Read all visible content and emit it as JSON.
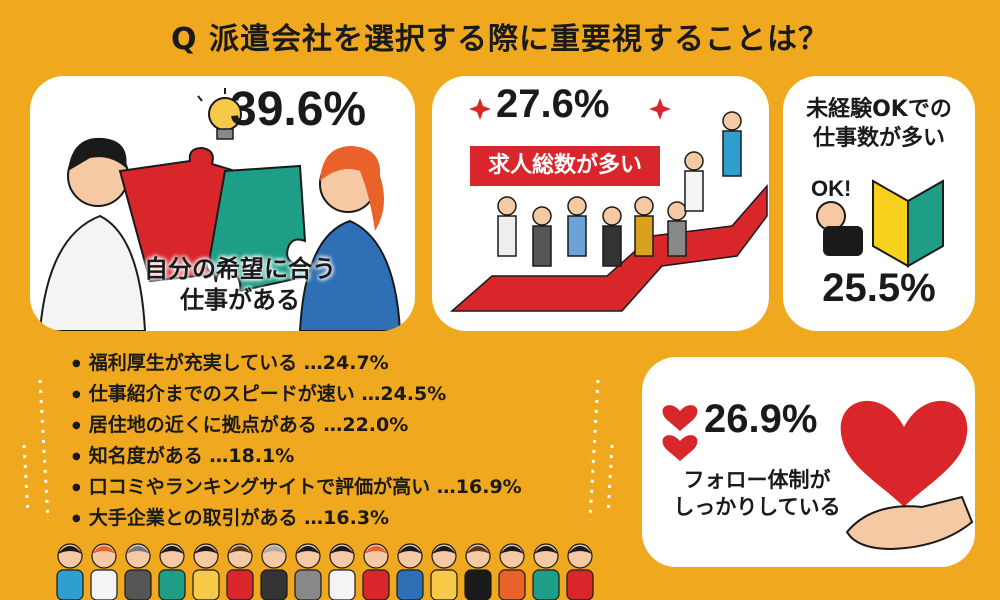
{
  "title": "Q 派遣会社を選択する際に重要視することは？",
  "chart_data": {
    "type": "infographic",
    "title": "Q 派遣会社を選択する際に重要視することは？",
    "items": [
      {
        "label": "自分の希望に合う仕事がある",
        "label_lines": [
          "自分の希望に合う",
          "仕事がある"
        ],
        "value": 39.6,
        "display": "39.6%"
      },
      {
        "label": "求人総数が多い",
        "value": 27.6,
        "display": "27.6%"
      },
      {
        "label": "フォロー体制がしっかりしている",
        "label_lines": [
          "フォロー体制が",
          "しっかりしている"
        ],
        "value": 26.9,
        "display": "26.9%"
      },
      {
        "label": "未経験OKでの仕事数が多い",
        "label_lines": [
          "未経験OKでの",
          "仕事数が多い"
        ],
        "value": 25.5,
        "display": "25.5%"
      },
      {
        "label": "福利厚生が充実している",
        "value": 24.7,
        "display": "福利厚生が充実している …24.7%"
      },
      {
        "label": "仕事紹介までのスピードが速い",
        "value": 24.5,
        "display": "仕事紹介までのスピードが速い …24.5%"
      },
      {
        "label": "居住地の近くに拠点がある",
        "value": 22.0,
        "display": "居住地の近くに拠点がある …22.0%"
      },
      {
        "label": "知名度がある",
        "value": 18.1,
        "display": "知名度がある …18.1%"
      },
      {
        "label": "口コミやランキングサイトで評価が高い",
        "value": 16.9,
        "display": "口コミやランキングサイトで評価が高い …16.9%"
      },
      {
        "label": "大手企業との取引がある",
        "value": 16.3,
        "display": "大手企業との取引がある …16.3%"
      }
    ],
    "ok_sign_text": "OK!"
  },
  "colors": {
    "background": "#f0a81e",
    "card": "#ffffff",
    "red": "#d9262b",
    "green": "#1e9e87",
    "text": "#1a1a1a"
  }
}
